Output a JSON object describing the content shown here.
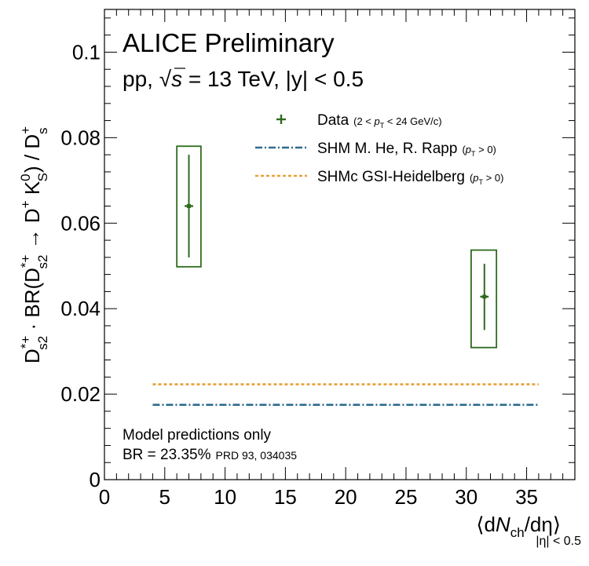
{
  "chart_data": {
    "type": "scatter",
    "title": "ALICE Preliminary",
    "subtitle": {
      "system": "pp, ",
      "sqrt_symbol": "√",
      "s_symbol": "s",
      "energy": " = 13 TeV, |y| < 0.5"
    },
    "ylabel": {
      "p1": "D",
      "p1_sup": "*+",
      "p1_sub": "s2",
      "p2": " · BR(D",
      "p2_sup": "*+",
      "p2_sub": "s2",
      "p3": " → D",
      "p3_sup": "+",
      "p4": " K",
      "p4_sup": "0",
      "p4_sub": "S",
      "p5": ") / D",
      "p5_sup": "+",
      "p5_sub": "s"
    },
    "xlabel": {
      "open": "⟨d",
      "n": "N",
      "n_sub": "ch",
      "rest": "/dη⟩",
      "range": "|η| < 0.5"
    },
    "xlim": [
      0,
      39
    ],
    "ylim": [
      0,
      0.11
    ],
    "xticks": [
      {
        "value": 0,
        "label": "0"
      },
      {
        "value": 5,
        "label": "5"
      },
      {
        "value": 10,
        "label": "10"
      },
      {
        "value": 15,
        "label": "15"
      },
      {
        "value": 20,
        "label": "20"
      },
      {
        "value": 25,
        "label": "25"
      },
      {
        "value": 30,
        "label": "30"
      },
      {
        "value": 35,
        "label": "35"
      }
    ],
    "yticks": [
      {
        "value": 0,
        "label": "0"
      },
      {
        "value": 0.02,
        "label": "0.02"
      },
      {
        "value": 0.04,
        "label": "0.04"
      },
      {
        "value": 0.06,
        "label": "0.06"
      },
      {
        "value": 0.08,
        "label": "0.08"
      },
      {
        "value": 0.1,
        "label": "0.1"
      }
    ],
    "series": [
      {
        "name": "Data",
        "color": "#2e6b1e",
        "points": [
          {
            "x": 7.0,
            "y": 0.064,
            "x_err": 0.35,
            "stat_lo": 0.052,
            "stat_hi": 0.076,
            "syst_x_lo": 6.0,
            "syst_x_hi": 8.0,
            "syst_lo": 0.0498,
            "syst_hi": 0.078
          },
          {
            "x": 31.5,
            "y": 0.0428,
            "x_err": 0.35,
            "stat_lo": 0.035,
            "stat_hi": 0.0505,
            "syst_x_lo": 30.4,
            "syst_x_hi": 32.5,
            "syst_lo": 0.0309,
            "syst_hi": 0.0537
          }
        ]
      },
      {
        "name": "SHM M. He, R. Rapp",
        "color": "#2f6b8e",
        "style": "dash-dot",
        "x_range": [
          4,
          36
        ],
        "y": 0.0175
      },
      {
        "name": "SHMc GSI-Heidelberg",
        "color": "#e8a038",
        "style": "dotted",
        "x_range": [
          4,
          36
        ],
        "y": 0.0223
      }
    ],
    "legend": {
      "placement": "top-right",
      "entries": [
        {
          "series": "Data",
          "text": "Data",
          "note_open": "(2 < ",
          "note_p": "p",
          "note_sub": "T",
          "note_close": " < 24 GeV/c)"
        },
        {
          "series": "SHM M. He, R. Rapp",
          "text": "SHM M. He, R. Rapp",
          "note_open": "(",
          "note_p": "p",
          "note_sub": "T",
          "note_close": " > 0)"
        },
        {
          "series": "SHMc GSI-Heidelberg",
          "text": "SHMc GSI-Heidelberg",
          "note_open": "(",
          "note_p": "p",
          "note_sub": "T",
          "note_close": " > 0)"
        }
      ]
    },
    "annotations": {
      "model_note": "Model predictions only",
      "br_value": "BR = 23.35%",
      "br_ref": "PRD 93, 034035"
    },
    "grid": false
  }
}
